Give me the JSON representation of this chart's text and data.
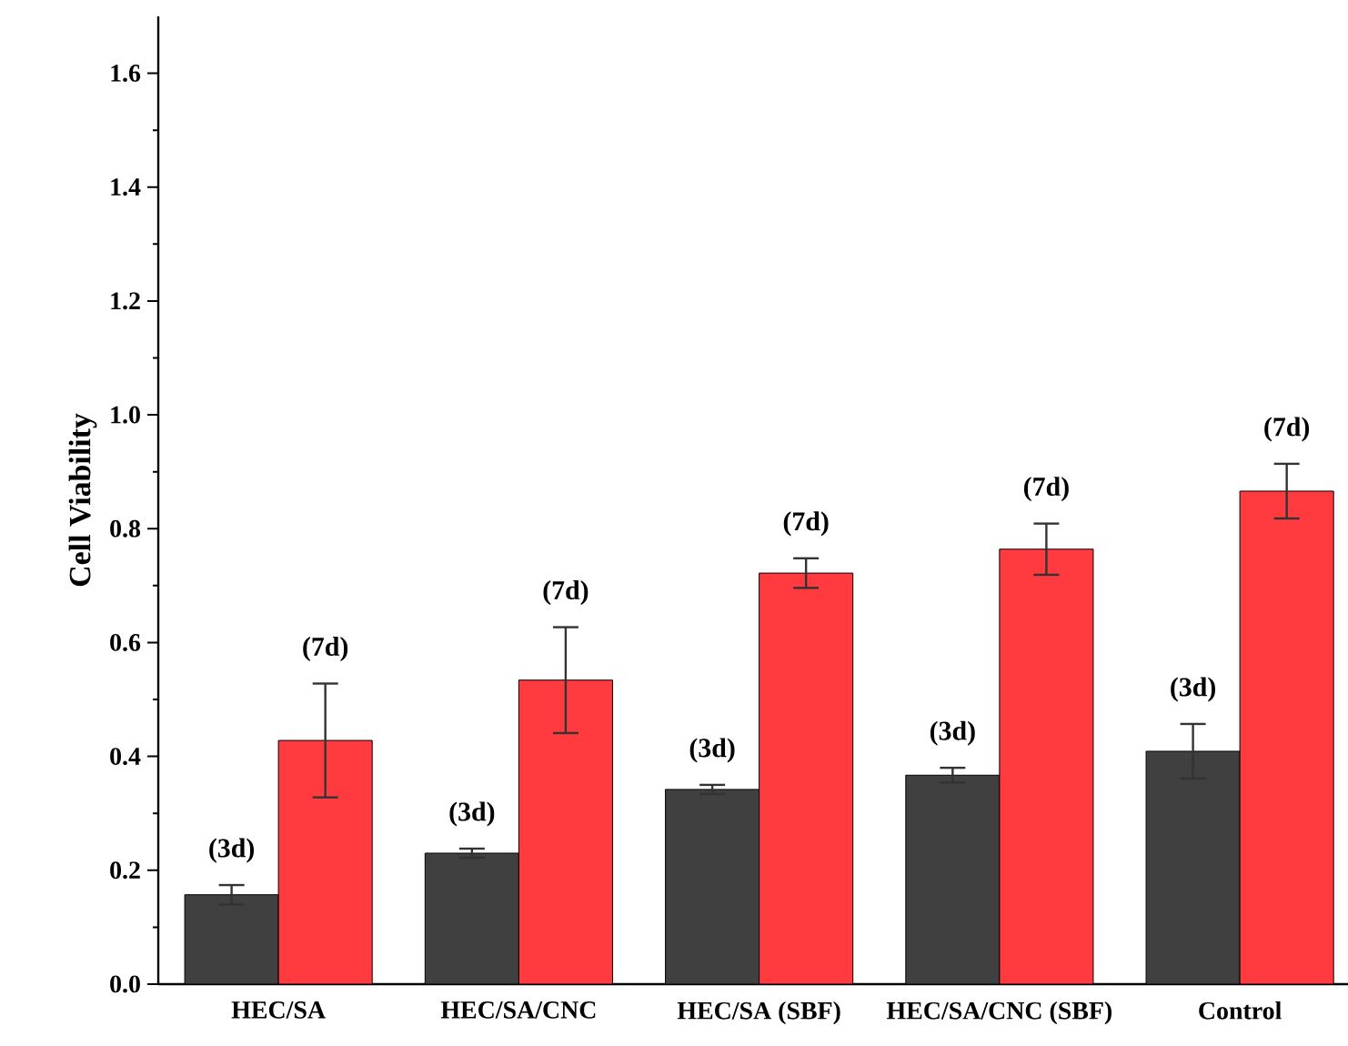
{
  "chart_data": {
    "type": "bar",
    "ylabel": "Cell Viability",
    "categories": [
      "HEC/SA",
      "HEC/SA/CNC",
      "HEC/SA (SBF)",
      "HEC/SA/CNC (SBF)",
      "Control"
    ],
    "series": [
      {
        "name": "(3d)",
        "color": "#404040",
        "values": [
          0.157,
          0.23,
          0.342,
          0.367,
          0.409
        ],
        "errors": [
          0.017,
          0.008,
          0.008,
          0.013,
          0.048
        ]
      },
      {
        "name": "(7d)",
        "color": "#ff3b3f",
        "values": [
          0.428,
          0.534,
          0.722,
          0.764,
          0.866
        ],
        "errors": [
          0.1,
          0.093,
          0.026,
          0.045,
          0.048
        ]
      }
    ],
    "ylim": [
      0,
      1.7
    ],
    "yticks": [
      {
        "value": 0,
        "label": "0.0"
      },
      0.2,
      0.4,
      0.6,
      0.8,
      {
        "value": 1,
        "label": "1.0"
      },
      1.2,
      1.4,
      1.6
    ]
  }
}
